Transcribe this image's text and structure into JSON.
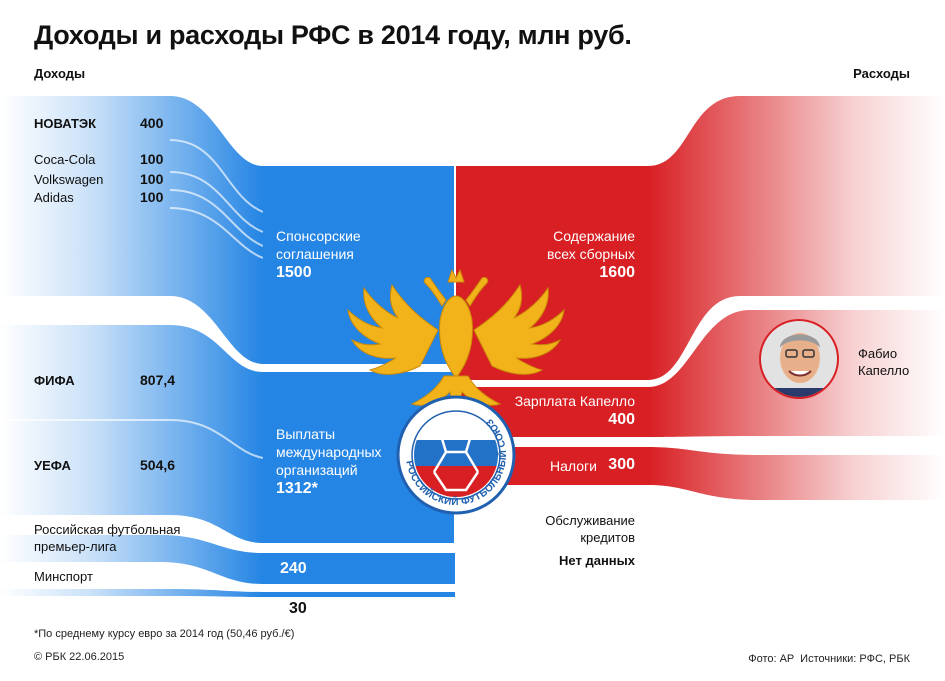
{
  "title": "Доходы и расходы РФС в 2014 году, млн руб.",
  "income_label": "Доходы",
  "expense_label": "Расходы",
  "colors": {
    "income": "#2585e4",
    "expense": "#d81f23",
    "eagle": "#f2b21a"
  },
  "chart_data": {
    "type": "sankey",
    "title": "Доходы и расходы РФС в 2014 году, млн руб.",
    "unit": "млн руб.",
    "income": {
      "sponsors": [
        {
          "name": "НОВАТЭК",
          "value": 400
        },
        {
          "name": "Coca-Cola",
          "value": 100
        },
        {
          "name": "Volkswagen",
          "value": 100
        },
        {
          "name": "Adidas",
          "value": 100
        }
      ],
      "sponsorship_total": {
        "label": "Спонсорские соглашения",
        "value": 1500
      },
      "international": [
        {
          "name": "ФИФА",
          "value": 807.4
        },
        {
          "name": "УЕФА",
          "value": 504.6
        }
      ],
      "international_total": {
        "label": "Выплаты международных организаций",
        "value": 1312,
        "value_text": "1312*"
      },
      "rfpl": {
        "name": "Российская футбольная премьер-лига",
        "value": 240
      },
      "minsport": {
        "name": "Минспорт",
        "value": 30
      }
    },
    "expenses": [
      {
        "name": "Содержание всех сборных",
        "value": 1600
      },
      {
        "name": "Зарплата Капелло",
        "value": 400
      },
      {
        "name": "Налоги",
        "value": 300
      },
      {
        "name": "Обслуживание кредитов",
        "value": null,
        "value_text": "Нет данных"
      }
    ]
  },
  "labels": {
    "sponsor_values": [
      "400",
      "100",
      "100",
      "100"
    ],
    "sponsorship_line1": "Спонсорские",
    "sponsorship_line2": "соглашения",
    "sponsorship_value": "1500",
    "fifa_value": "807,4",
    "uefa_value": "504,6",
    "intl_line1": "Выплаты",
    "intl_line2": "международных",
    "intl_line3": "организаций",
    "intl_value": "1312*",
    "rfpl_line1": "Российская футбольная",
    "rfpl_line2": "премьер-лига",
    "rfpl_value": "240",
    "minsport_value": "30",
    "exp1_line1": "Содержание",
    "exp1_line2": "всех сборных",
    "exp1_value": "1600",
    "exp2_label": "Зарплата Капелло",
    "exp2_value": "400",
    "exp3_label": "Налоги",
    "exp3_value": "300",
    "exp4_line1": "Обслуживание",
    "exp4_line2": "кредитов",
    "exp4_value": "Нет данных"
  },
  "person": {
    "line1": "Фабио",
    "line2": "Капелло",
    "icon": "person-photo"
  },
  "emblem": {
    "ring_text": "РОССИЙСКИЙ ФУТБОЛЬНЫЙ СОЮЗ",
    "icon": "double-headed-eagle"
  },
  "footnote": "*По среднему курсу евро за 2014 год (50,46 руб./€)",
  "copyright": "© РБК 22.06.2015",
  "sources": "Фото: AP  Источники: РФС, РБК"
}
